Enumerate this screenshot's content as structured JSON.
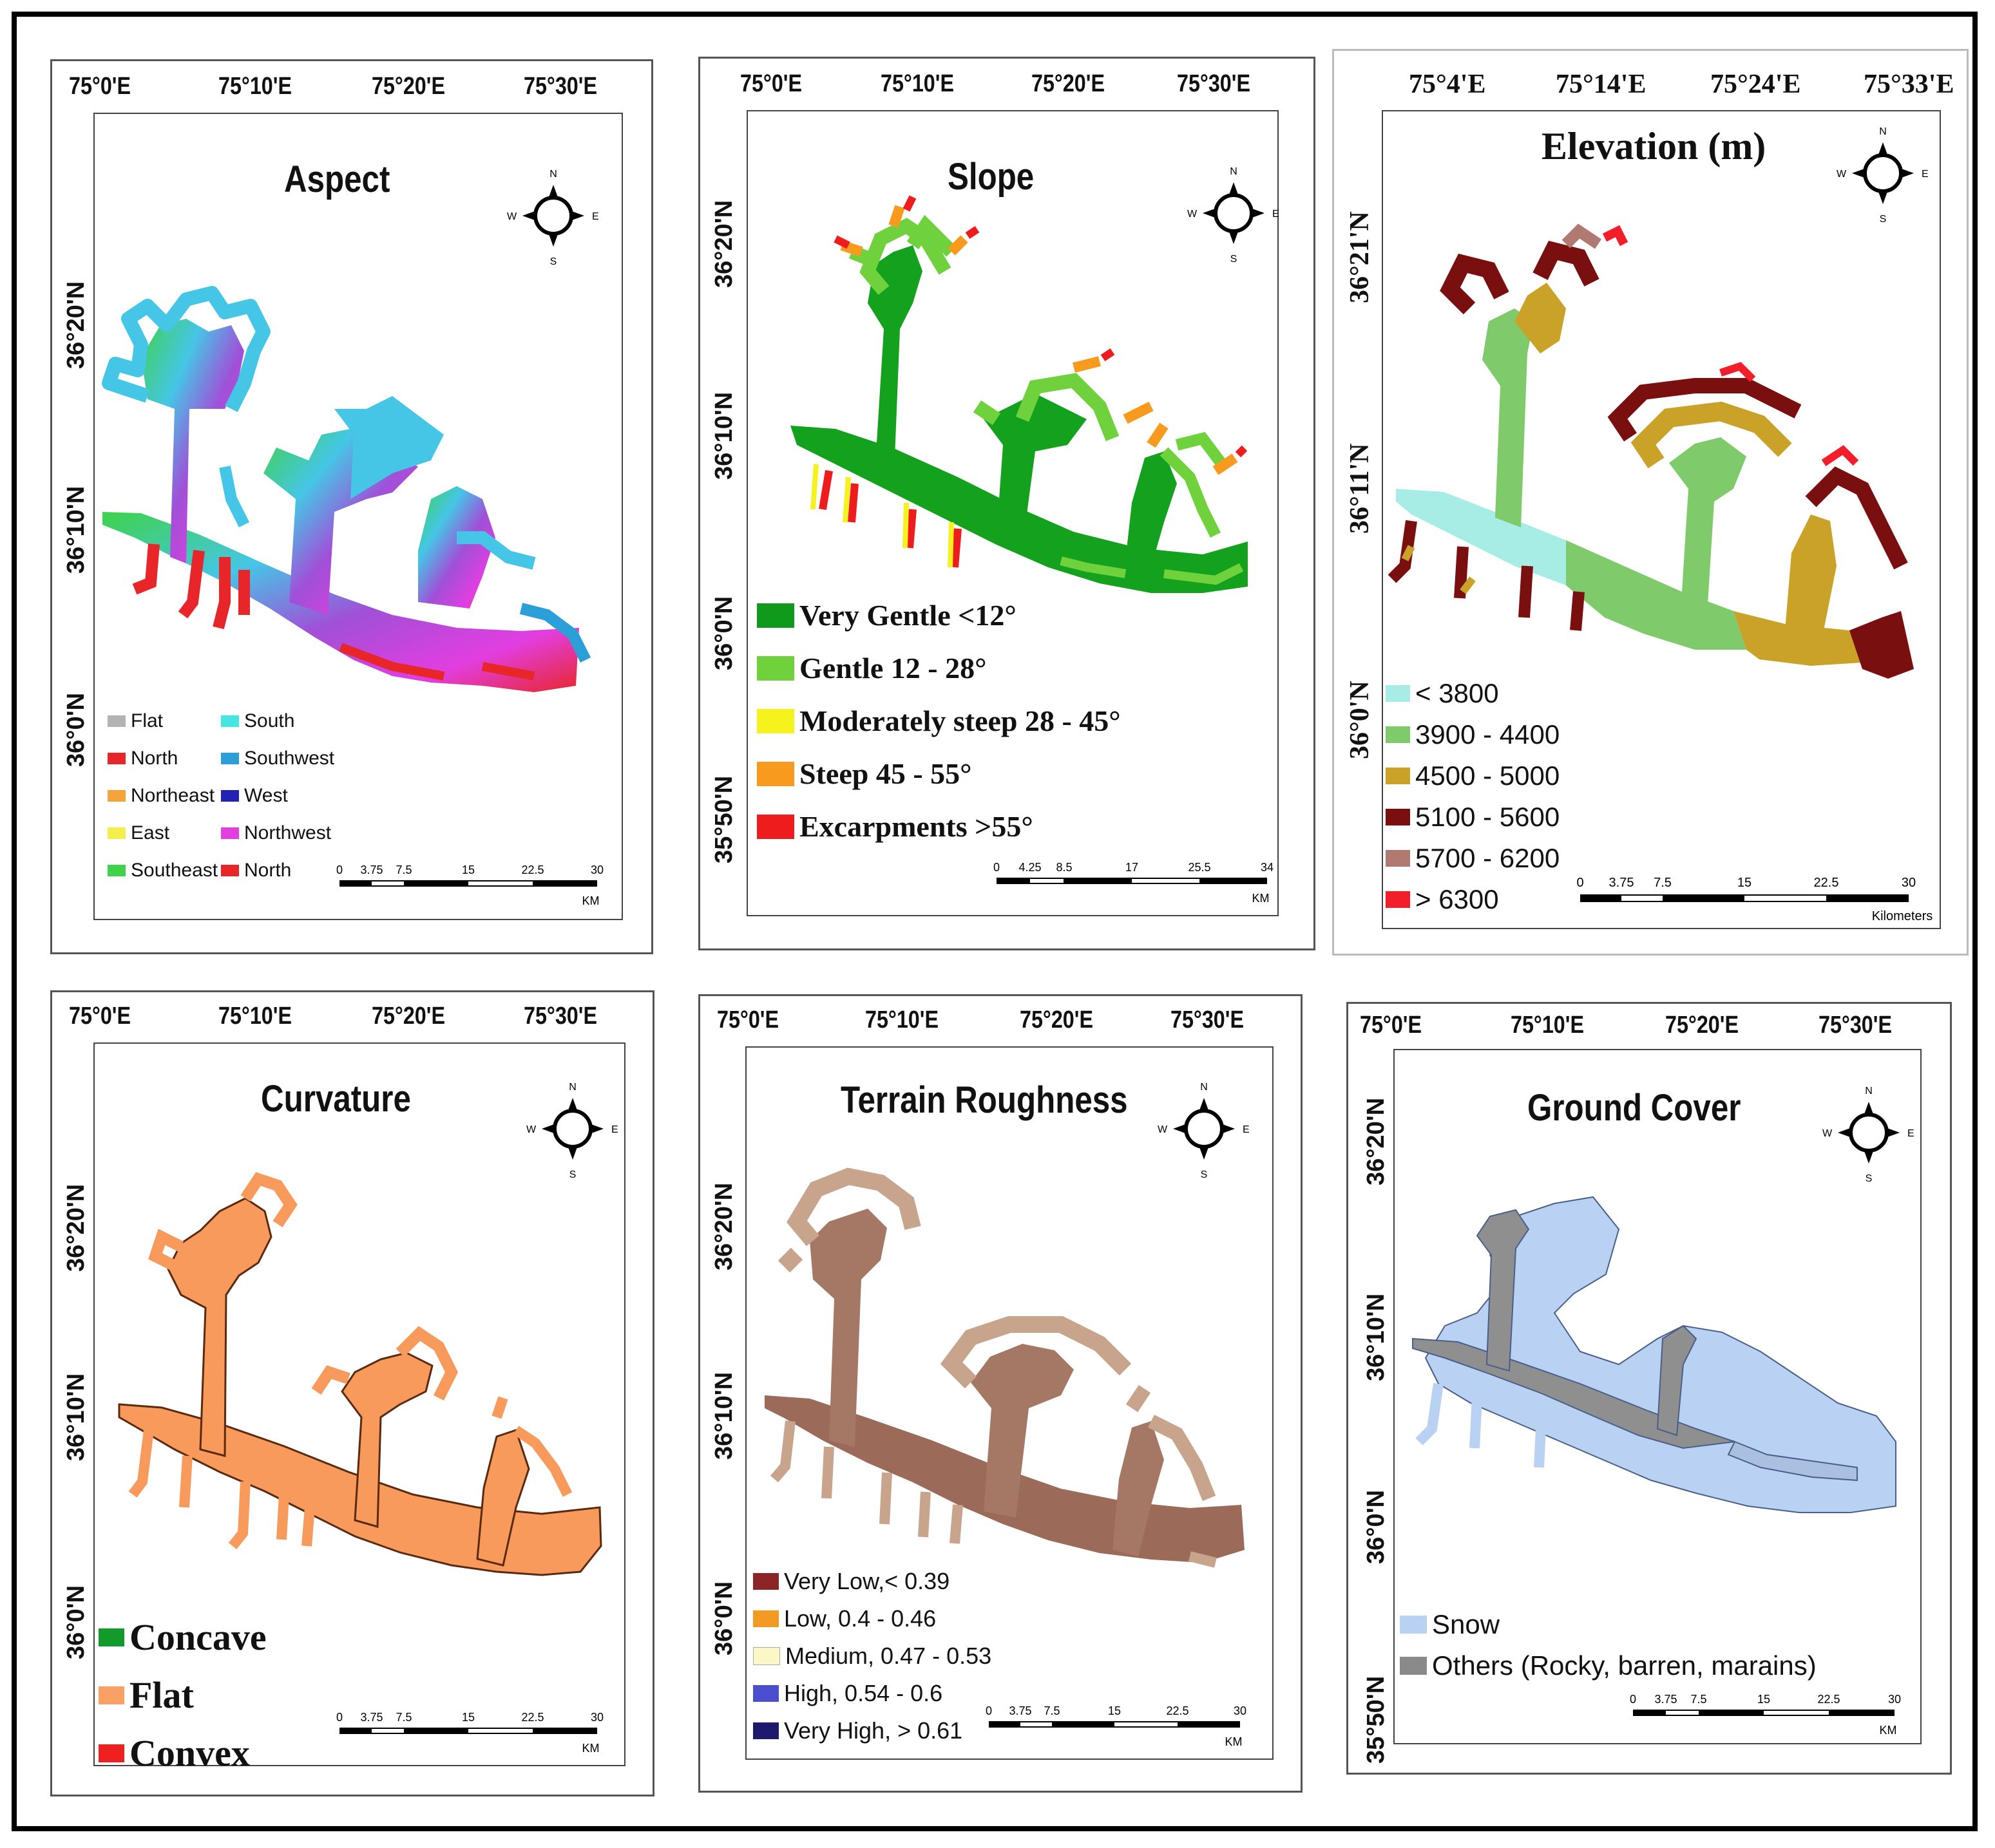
{
  "panels": {
    "aspect": {
      "title": "Aspect",
      "lon_ticks": [
        "75°0'E",
        "75°10'E",
        "75°20'E",
        "75°30'E"
      ],
      "lat_ticks": [
        "36°20'N",
        "36°10'N",
        "36°0'N"
      ],
      "legend": [
        {
          "label": "Flat",
          "color": "#b3b3b3"
        },
        {
          "label": "North",
          "color": "#e8262a"
        },
        {
          "label": "Northeast",
          "color": "#f6a33c"
        },
        {
          "label": "East",
          "color": "#f4ee4a"
        },
        {
          "label": "Southeast",
          "color": "#3fd24a"
        },
        {
          "label": "South",
          "color": "#45e6e2"
        },
        {
          "label": "Southwest",
          "color": "#2c9fd8"
        },
        {
          "label": "West",
          "color": "#2322b4"
        },
        {
          "label": "Northwest",
          "color": "#e23ee0"
        },
        {
          "label": "North",
          "color": "#e8262a"
        }
      ],
      "scale": {
        "ticks": [
          "0",
          "3.75",
          "7.5",
          "15",
          "22.5",
          "30"
        ],
        "unit": "KM"
      }
    },
    "slope": {
      "title": "Slope",
      "lon_ticks": [
        "75°0'E",
        "75°10'E",
        "75°20'E",
        "75°30'E"
      ],
      "lat_ticks": [
        "36°20'N",
        "36°10'N",
        "36°0'N",
        "35°50'N"
      ],
      "legend": [
        {
          "label": "Very Gentle <12°",
          "color": "#0f9a1c"
        },
        {
          "label": "Gentle 12 - 28°",
          "color": "#6fd23c"
        },
        {
          "label": "Moderately steep 28 - 45°",
          "color": "#f6f21e"
        },
        {
          "label": "Steep 45 - 55°",
          "color": "#f89a1e"
        },
        {
          "label": "Excarpments >55°",
          "color": "#ee1c1c"
        }
      ],
      "scale": {
        "ticks": [
          "0",
          "4.25",
          "8.5",
          "17",
          "25.5",
          "34"
        ],
        "unit": "KM"
      }
    },
    "elevation": {
      "title": "Elevation (m)",
      "lon_ticks": [
        "75°4'E",
        "75°14'E",
        "75°24'E",
        "75°33'E"
      ],
      "lat_ticks": [
        "36°21'N",
        "36°11'N",
        "36°0'N"
      ],
      "legend": [
        {
          "label": "< 3800",
          "color": "#a8ece6"
        },
        {
          "label": "3900 - 4400",
          "color": "#7fca6a"
        },
        {
          "label": "4500 - 5000",
          "color": "#c9a227"
        },
        {
          "label": "5100 - 5600",
          "color": "#7a0f0f"
        },
        {
          "label": "5700 - 6200",
          "color": "#b07a72"
        },
        {
          "label": "> 6300",
          "color": "#f21f2a"
        }
      ],
      "scale": {
        "ticks": [
          "0",
          "3.75",
          "7.5",
          "15",
          "22.5",
          "30"
        ],
        "unit": "Kilometers"
      }
    },
    "curvature": {
      "title": "Curvature",
      "lon_ticks": [
        "75°0'E",
        "75°10'E",
        "75°20'E",
        "75°30'E"
      ],
      "lat_ticks": [
        "36°20'N",
        "36°10'N",
        "36°0'N"
      ],
      "legend": [
        {
          "label": "Concave",
          "color": "#129a2a"
        },
        {
          "label": "Flat",
          "color": "#f8a066"
        },
        {
          "label": "Convex",
          "color": "#ee2020"
        }
      ],
      "scale": {
        "ticks": [
          "0",
          "3.75",
          "7.5",
          "15",
          "22.5",
          "30"
        ],
        "unit": "KM"
      }
    },
    "roughness": {
      "title": "Terrain Roughness",
      "lon_ticks": [
        "75°0'E",
        "75°10'E",
        "75°20'E",
        "75°30'E"
      ],
      "lat_ticks": [
        "36°20'N",
        "36°10'N",
        "36°0'N"
      ],
      "legend": [
        {
          "label": "Very Low,< 0.39",
          "color": "#8c2626"
        },
        {
          "label": "Low, 0.4 - 0.46",
          "color": "#f29a24"
        },
        {
          "label": "Medium, 0.47 - 0.53",
          "color": "#fbf7c6"
        },
        {
          "label": "High, 0.54 - 0.6",
          "color": "#4b4fcf"
        },
        {
          "label": "Very High, > 0.61",
          "color": "#1d1a6e"
        }
      ],
      "scale": {
        "ticks": [
          "0",
          "3.75",
          "7.5",
          "15",
          "22.5",
          "30"
        ],
        "unit": "KM"
      }
    },
    "ground": {
      "title": "Ground Cover",
      "lon_ticks": [
        "75°0'E",
        "75°10'E",
        "75°20'E",
        "75°30'E"
      ],
      "lat_ticks": [
        "36°20'N",
        "36°10'N",
        "36°0'N",
        "35°50'N"
      ],
      "legend": [
        {
          "label": "Snow",
          "color": "#b9d1f2"
        },
        {
          "label": "Others (Rocky, barren, marains)",
          "color": "#8a8a8a"
        }
      ],
      "scale": {
        "ticks": [
          "0",
          "3.75",
          "7.5",
          "15",
          "22.5",
          "30"
        ],
        "unit": "KM"
      }
    }
  },
  "compass": {
    "n": "N",
    "s": "S",
    "e": "E",
    "w": "W"
  },
  "colors": {
    "aspect_fill": "#a050d8",
    "slope_fill": "#14a21e",
    "curvature_fill": "#f79a5c",
    "roughness_fill": "#b08a72",
    "ground_snow": "#b9d1f2",
    "ground_rock": "#8f8f8f"
  }
}
